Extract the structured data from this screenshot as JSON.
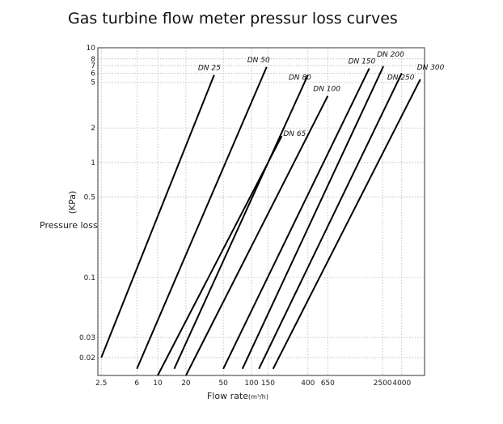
{
  "title": "Gas turbine flow meter pressur loss curves",
  "chart_data": {
    "type": "line",
    "title": "Gas turbine flow meter pressur loss curves",
    "xlabel": "Flow rate",
    "xunit": "(m³/h)",
    "ylabel": "Pressure loss",
    "yunit": "(KPa)",
    "xscale": "log",
    "yscale": "log",
    "xlim": [
      2.3,
      7000
    ],
    "ylim": [
      0.014,
      10
    ],
    "grid": true,
    "x_ticks": [
      {
        "label": "2.5",
        "value": 2.5
      },
      {
        "label": "6",
        "value": 6
      },
      {
        "label": "10",
        "value": 10
      },
      {
        "label": "20",
        "value": 20
      },
      {
        "label": "50",
        "value": 50
      },
      {
        "label": "100",
        "value": 100
      },
      {
        "label": "150",
        "value": 150
      },
      {
        "label": "400",
        "value": 400
      },
      {
        "label": "650",
        "value": 650
      },
      {
        "label": "2500",
        "value": 2500
      },
      {
        "label": "4000",
        "value": 4000
      }
    ],
    "y_ticks": [
      {
        "label": "10",
        "value": 10
      },
      {
        "label": "8",
        "value": 8
      },
      {
        "label": "7",
        "value": 7
      },
      {
        "label": "6",
        "value": 6
      },
      {
        "label": "5",
        "value": 5
      },
      {
        "label": "2",
        "value": 2
      },
      {
        "label": "1",
        "value": 1
      },
      {
        "label": "0.5",
        "value": 0.5
      },
      {
        "label": "0.1",
        "value": 0.1
      },
      {
        "label": "0.03",
        "value": 0.03
      },
      {
        "label": "0.02",
        "value": 0.02
      }
    ],
    "series": [
      {
        "name": "DN 25",
        "x": [
          2.5,
          40
        ],
        "y": [
          0.02,
          5.8
        ]
      },
      {
        "name": "DN 50",
        "x": [
          6,
          145
        ],
        "y": [
          0.016,
          6.8
        ]
      },
      {
        "name": "DN 65",
        "x": [
          10,
          210
        ],
        "y": [
          0.014,
          1.7
        ]
      },
      {
        "name": "DN 80",
        "x": [
          15,
          400
        ],
        "y": [
          0.016,
          5.8
        ]
      },
      {
        "name": "DN 100",
        "x": [
          20,
          650
        ],
        "y": [
          0.014,
          3.8
        ]
      },
      {
        "name": "DN 150",
        "x": [
          50,
          1800
        ],
        "y": [
          0.016,
          6.6
        ]
      },
      {
        "name": "DN 200",
        "x": [
          80,
          2550
        ],
        "y": [
          0.016,
          6.9
        ]
      },
      {
        "name": "DN 250",
        "x": [
          120,
          4000
        ],
        "y": [
          0.016,
          6.0
        ]
      },
      {
        "name": "DN 300",
        "x": [
          170,
          6300
        ],
        "y": [
          0.016,
          5.3
        ]
      }
    ]
  }
}
